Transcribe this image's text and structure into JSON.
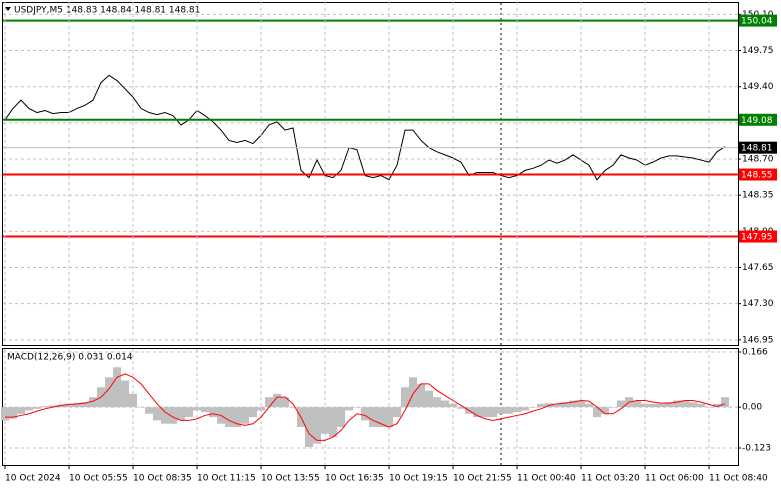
{
  "chart_data": [
    {
      "type": "line",
      "title": "USDJPY,M5  148.83 148.84 148.81 148.81",
      "ylim": [
        146.9,
        150.22
      ],
      "yticks": [
        {
          "value": 150.1,
          "label": "150.10"
        },
        149.75,
        {
          "value": 149.4,
          "label": "149.40"
        },
        149.05,
        {
          "value": 148.7,
          "label": "148.70"
        },
        148.35,
        {
          "value": 148,
          "label": "148.00"
        },
        147.65,
        {
          "value": 147.3,
          "label": "147.30"
        },
        146.95
      ],
      "grid": true,
      "levels": [
        {
          "value": 150.04,
          "color": "#008000"
        },
        {
          "value": 149.08,
          "color": "#008000"
        },
        {
          "value": 148.81,
          "color": "#c0c0c0"
        },
        {
          "value": 148.55,
          "color": "#ff0000"
        },
        {
          "value": 147.95,
          "color": "#ff0000"
        }
      ],
      "series": [
        {
          "color": "#000000",
          "values": [
            149.08,
            149.19,
            149.27,
            149.19,
            149.15,
            149.17,
            149.14,
            149.15,
            149.15,
            149.19,
            149.22,
            149.27,
            149.44,
            149.51,
            149.46,
            149.38,
            149.3,
            149.19,
            149.15,
            149.13,
            149.15,
            149.12,
            149.03,
            149.08,
            149.17,
            149.12,
            149.06,
            148.98,
            148.88,
            148.86,
            148.88,
            148.85,
            148.93,
            149.03,
            149.06,
            148.98,
            149.0,
            148.59,
            148.52,
            148.69,
            148.54,
            148.52,
            148.59,
            148.81,
            148.79,
            148.54,
            148.52,
            148.54,
            148.5,
            148.64,
            148.98,
            148.98,
            148.88,
            148.81,
            148.77,
            148.74,
            148.71,
            148.67,
            148.54,
            148.57,
            148.57,
            148.57,
            148.54,
            148.52,
            148.54,
            148.59,
            148.61,
            148.64,
            148.69,
            148.66,
            148.69,
            148.74,
            148.69,
            148.64,
            148.5,
            148.59,
            148.64,
            148.74,
            148.71,
            148.69,
            148.64,
            148.67,
            148.71,
            148.73,
            148.73,
            148.72,
            148.71,
            148.69,
            148.67,
            148.77,
            148.82
          ]
        }
      ]
    },
    {
      "type": "bar",
      "title": "MACD(12,26,9) 0.031 0.014",
      "ylim": [
        -0.123,
        0.166
      ],
      "yticks": [
        0.166,
        {
          "value": 0,
          "label": "0.00"
        },
        -0.123
      ],
      "grid": true,
      "categories": [
        "10 Oct 2024",
        null,
        null,
        null,
        null,
        null,
        null,
        null,
        "10 Oct 05:55",
        null,
        null,
        null,
        null,
        null,
        null,
        null,
        "10 Oct 08:35",
        null,
        null,
        null,
        null,
        null,
        null,
        null,
        "10 Oct 11:15",
        null,
        null,
        null,
        null,
        null,
        null,
        null,
        "10 Oct 13:55",
        null,
        null,
        null,
        null,
        null,
        null,
        null,
        "10 Oct 16:35",
        null,
        null,
        null,
        null,
        null,
        null,
        null,
        "10 Oct 19:15",
        null,
        null,
        null,
        null,
        null,
        null,
        null,
        "10 Oct 21:55",
        null,
        null,
        null,
        null,
        null,
        null,
        null,
        "11 Oct 00:40",
        null,
        null,
        null,
        null,
        null,
        null,
        null,
        "11 Oct 03:20",
        null,
        null,
        null,
        null,
        null,
        null,
        null,
        "11 Oct 06:00",
        null,
        null,
        null,
        null,
        null,
        null,
        null,
        "11 Oct 08:40",
        null,
        null
      ],
      "series": [
        {
          "type": "bar",
          "color": "#c0c0c0",
          "values": [
            -0.04,
            -0.035,
            -0.02,
            -0.01,
            -0.005,
            0.003,
            0.005,
            0.008,
            0.01,
            0.012,
            0.015,
            0.03,
            0.06,
            0.09,
            0.12,
            0.08,
            0.04,
            0.0,
            -0.02,
            -0.04,
            -0.05,
            -0.05,
            -0.04,
            -0.03,
            -0.01,
            -0.015,
            -0.03,
            -0.05,
            -0.06,
            -0.06,
            -0.05,
            -0.03,
            -0.01,
            0.03,
            0.04,
            0.03,
            0.0,
            -0.06,
            -0.12,
            -0.11,
            -0.08,
            -0.09,
            -0.06,
            -0.01,
            0.0,
            -0.04,
            -0.06,
            -0.06,
            -0.06,
            -0.03,
            0.06,
            0.09,
            0.07,
            0.05,
            0.03,
            0.02,
            0.01,
            -0.005,
            -0.02,
            -0.03,
            -0.03,
            -0.03,
            -0.02,
            -0.02,
            -0.015,
            -0.01,
            0.0,
            0.01,
            0.012,
            0.01,
            0.015,
            0.02,
            0.02,
            0.01,
            -0.03,
            -0.02,
            0.0,
            0.02,
            0.03,
            0.02,
            0.01,
            0.01,
            0.01,
            0.015,
            0.02,
            0.02,
            0.015,
            0.01,
            0.0,
            0.01,
            0.03
          ]
        },
        {
          "type": "line",
          "color": "#ff0000",
          "values": [
            -0.03,
            -0.03,
            -0.025,
            -0.02,
            -0.012,
            -0.005,
            0.0,
            0.005,
            0.008,
            0.01,
            0.012,
            0.018,
            0.03,
            0.055,
            0.09,
            0.1,
            0.09,
            0.07,
            0.04,
            0.01,
            -0.015,
            -0.03,
            -0.04,
            -0.04,
            -0.035,
            -0.025,
            -0.02,
            -0.025,
            -0.04,
            -0.05,
            -0.055,
            -0.05,
            -0.03,
            0.0,
            0.03,
            0.03,
            0.01,
            -0.03,
            -0.08,
            -0.1,
            -0.1,
            -0.09,
            -0.07,
            -0.04,
            -0.02,
            -0.025,
            -0.04,
            -0.05,
            -0.06,
            -0.05,
            -0.01,
            0.04,
            0.07,
            0.07,
            0.05,
            0.035,
            0.02,
            0.005,
            -0.01,
            -0.025,
            -0.035,
            -0.04,
            -0.035,
            -0.03,
            -0.025,
            -0.02,
            -0.012,
            -0.005,
            0.005,
            0.01,
            0.012,
            0.015,
            0.02,
            0.018,
            0.0,
            -0.02,
            -0.02,
            -0.005,
            0.015,
            0.02,
            0.02,
            0.015,
            0.012,
            0.012,
            0.015,
            0.02,
            0.02,
            0.015,
            0.008,
            0.002,
            0.01
          ]
        }
      ]
    }
  ]
}
